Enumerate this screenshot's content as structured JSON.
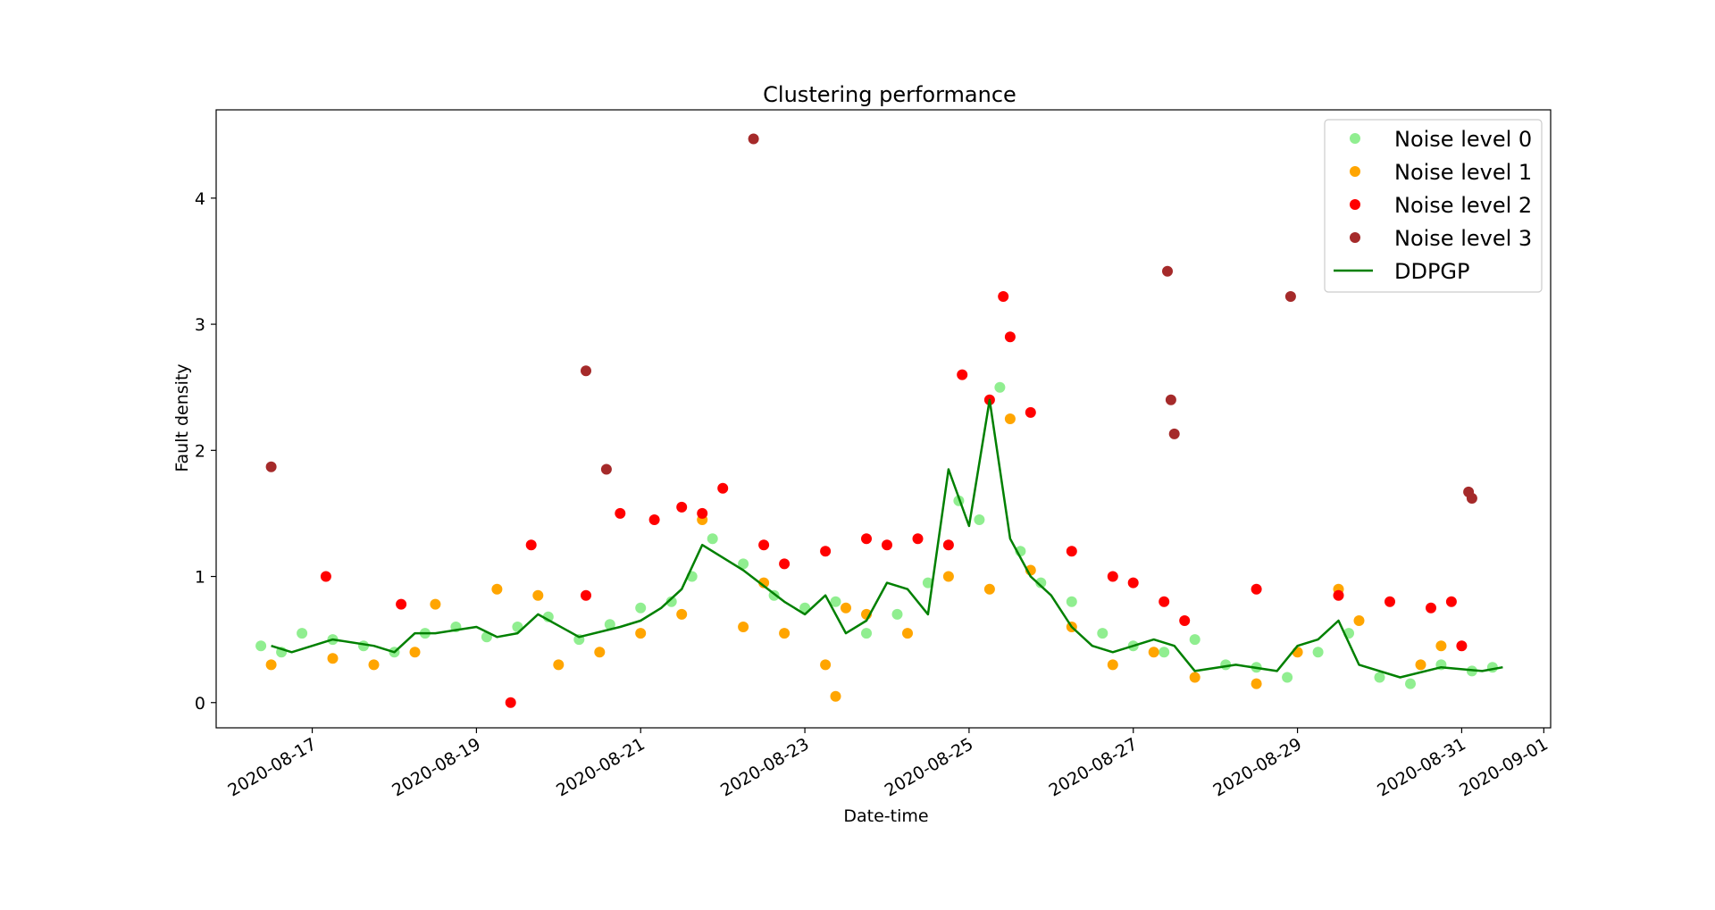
{
  "chart_data": {
    "type": "scatter",
    "title": "Clustering performance",
    "xlabel": "Date-time",
    "ylabel": "Fault density",
    "x_ticks": [
      "2020-08-17",
      "2020-08-19",
      "2020-08-21",
      "2020-08-23",
      "2020-08-25",
      "2020-08-27",
      "2020-08-29",
      "2020-08-31",
      "2020-09-01"
    ],
    "y_ticks": [
      "0",
      "1",
      "2",
      "3",
      "4"
    ],
    "xlim": [
      "2020-08-15T19:55",
      "2020-09-01T02:00"
    ],
    "ylim": [
      -0.2,
      4.7
    ],
    "grid": false,
    "legend_position": "top-right",
    "colors": {
      "noise0": "#90ee90",
      "noise1": "#ffa500",
      "noise2": "#ff0000",
      "noise3": "#a52a2a",
      "ddpgp": "#008000"
    },
    "legend": [
      {
        "label": "Noise level 0",
        "kind": "marker",
        "color": "#90ee90"
      },
      {
        "label": "Noise level 1",
        "kind": "marker",
        "color": "#ffa500"
      },
      {
        "label": "Noise level 2",
        "kind": "marker",
        "color": "#ff0000"
      },
      {
        "label": "Noise level 3",
        "kind": "marker",
        "color": "#a52a2a"
      },
      {
        "label": "DDPGP",
        "kind": "line",
        "color": "#008000"
      }
    ],
    "ddpgp": {
      "x": [
        "2020-08-16T12:00",
        "2020-08-16T18:00",
        "2020-08-17T06:00",
        "2020-08-17T18:00",
        "2020-08-18T00:00",
        "2020-08-18T06:00",
        "2020-08-18T12:00",
        "2020-08-19T00:00",
        "2020-08-19T06:00",
        "2020-08-19T12:00",
        "2020-08-19T18:00",
        "2020-08-20T06:00",
        "2020-08-20T18:00",
        "2020-08-21T00:00",
        "2020-08-21T06:00",
        "2020-08-21T12:00",
        "2020-08-21T18:00",
        "2020-08-22T06:00",
        "2020-08-22T18:00",
        "2020-08-23T00:00",
        "2020-08-23T06:00",
        "2020-08-23T12:00",
        "2020-08-23T18:00",
        "2020-08-24T00:00",
        "2020-08-24T06:00",
        "2020-08-24T12:00",
        "2020-08-24T18:00",
        "2020-08-25T00:00",
        "2020-08-25T06:00",
        "2020-08-25T12:00",
        "2020-08-25T18:00",
        "2020-08-26T00:00",
        "2020-08-26T06:00",
        "2020-08-26T12:00",
        "2020-08-26T18:00",
        "2020-08-27T06:00",
        "2020-08-27T12:00",
        "2020-08-27T18:00",
        "2020-08-28T06:00",
        "2020-08-28T18:00",
        "2020-08-29T00:00",
        "2020-08-29T06:00",
        "2020-08-29T12:00",
        "2020-08-29T18:00",
        "2020-08-30T06:00",
        "2020-08-30T18:00",
        "2020-08-31T06:00",
        "2020-08-31T12:00"
      ],
      "y": [
        0.45,
        0.4,
        0.5,
        0.45,
        0.4,
        0.55,
        0.55,
        0.6,
        0.52,
        0.55,
        0.7,
        0.52,
        0.6,
        0.65,
        0.75,
        0.9,
        1.25,
        1.05,
        0.8,
        0.7,
        0.85,
        0.55,
        0.65,
        0.95,
        0.9,
        0.7,
        1.85,
        1.4,
        2.4,
        1.3,
        1.0,
        0.85,
        0.6,
        0.45,
        0.4,
        0.5,
        0.45,
        0.25,
        0.3,
        0.25,
        0.45,
        0.5,
        0.65,
        0.3,
        0.2,
        0.28,
        0.25,
        0.28
      ]
    },
    "series": [
      {
        "name": "Noise level 0",
        "color": "#90ee90",
        "x": [
          "2020-08-16T09:00",
          "2020-08-16T15:00",
          "2020-08-16T21:00",
          "2020-08-17T06:00",
          "2020-08-17T15:00",
          "2020-08-18T00:00",
          "2020-08-18T09:00",
          "2020-08-18T18:00",
          "2020-08-19T03:00",
          "2020-08-19T12:00",
          "2020-08-19T21:00",
          "2020-08-20T06:00",
          "2020-08-20T15:00",
          "2020-08-21T00:00",
          "2020-08-21T09:00",
          "2020-08-21T15:00",
          "2020-08-21T21:00",
          "2020-08-22T06:00",
          "2020-08-22T15:00",
          "2020-08-23T00:00",
          "2020-08-23T09:00",
          "2020-08-23T18:00",
          "2020-08-24T03:00",
          "2020-08-24T12:00",
          "2020-08-24T21:00",
          "2020-08-25T03:00",
          "2020-08-25T09:00",
          "2020-08-25T15:00",
          "2020-08-25T21:00",
          "2020-08-26T06:00",
          "2020-08-26T15:00",
          "2020-08-27T00:00",
          "2020-08-27T09:00",
          "2020-08-27T18:00",
          "2020-08-28T03:00",
          "2020-08-28T12:00",
          "2020-08-28T21:00",
          "2020-08-29T06:00",
          "2020-08-29T15:00",
          "2020-08-30T00:00",
          "2020-08-30T09:00",
          "2020-08-30T18:00",
          "2020-08-31T03:00",
          "2020-08-31T09:00"
        ],
        "values": [
          0.45,
          0.4,
          0.55,
          0.5,
          0.45,
          0.4,
          0.55,
          0.6,
          0.52,
          0.6,
          0.68,
          0.5,
          0.62,
          0.75,
          0.8,
          1.0,
          1.3,
          1.1,
          0.85,
          0.75,
          0.8,
          0.55,
          0.7,
          0.95,
          1.6,
          1.45,
          2.5,
          1.2,
          0.95,
          0.8,
          0.55,
          0.45,
          0.4,
          0.5,
          0.3,
          0.28,
          0.2,
          0.4,
          0.55,
          0.2,
          0.15,
          0.3,
          0.25,
          0.28
        ]
      },
      {
        "name": "Noise level 1",
        "color": "#ffa500",
        "x": [
          "2020-08-16T12:00",
          "2020-08-17T06:00",
          "2020-08-17T18:00",
          "2020-08-18T06:00",
          "2020-08-18T12:00",
          "2020-08-19T06:00",
          "2020-08-19T18:00",
          "2020-08-20T00:00",
          "2020-08-20T12:00",
          "2020-08-21T00:00",
          "2020-08-21T12:00",
          "2020-08-21T18:00",
          "2020-08-22T06:00",
          "2020-08-22T12:00",
          "2020-08-22T18:00",
          "2020-08-23T06:00",
          "2020-08-23T09:00",
          "2020-08-23T12:00",
          "2020-08-23T18:00",
          "2020-08-24T06:00",
          "2020-08-24T18:00",
          "2020-08-25T06:00",
          "2020-08-25T12:00",
          "2020-08-25T18:00",
          "2020-08-26T06:00",
          "2020-08-26T18:00",
          "2020-08-27T06:00",
          "2020-08-27T18:00",
          "2020-08-28T12:00",
          "2020-08-29T00:00",
          "2020-08-29T12:00",
          "2020-08-29T18:00",
          "2020-08-30T12:00",
          "2020-08-30T18:00"
        ],
        "values": [
          0.3,
          0.35,
          0.3,
          0.4,
          0.78,
          0.9,
          0.85,
          0.3,
          0.4,
          0.55,
          0.7,
          1.45,
          0.6,
          0.95,
          0.55,
          0.3,
          0.05,
          0.75,
          0.7,
          0.55,
          1.0,
          0.9,
          2.25,
          1.05,
          0.6,
          0.3,
          0.4,
          0.2,
          0.15,
          0.4,
          0.9,
          0.65,
          0.3,
          0.45
        ]
      },
      {
        "name": "Noise level 2",
        "color": "#ff0000",
        "x": [
          "2020-08-17T04:00",
          "2020-08-18T02:00",
          "2020-08-19T10:00",
          "2020-08-19T16:00",
          "2020-08-20T08:00",
          "2020-08-20T18:00",
          "2020-08-21T04:00",
          "2020-08-21T12:00",
          "2020-08-21T18:00",
          "2020-08-22T00:00",
          "2020-08-22T12:00",
          "2020-08-22T18:00",
          "2020-08-23T06:00",
          "2020-08-23T18:00",
          "2020-08-24T00:00",
          "2020-08-24T09:00",
          "2020-08-24T18:00",
          "2020-08-24T22:00",
          "2020-08-25T06:00",
          "2020-08-25T10:00",
          "2020-08-25T12:00",
          "2020-08-25T18:00",
          "2020-08-26T06:00",
          "2020-08-26T18:00",
          "2020-08-27T00:00",
          "2020-08-27T09:00",
          "2020-08-27T15:00",
          "2020-08-28T12:00",
          "2020-08-29T12:00",
          "2020-08-30T03:00",
          "2020-08-30T15:00",
          "2020-08-30T21:00",
          "2020-08-31T00:00"
        ],
        "values": [
          1.0,
          0.78,
          0.0,
          1.25,
          0.85,
          1.5,
          1.45,
          1.55,
          1.5,
          1.7,
          1.25,
          1.1,
          1.2,
          1.3,
          1.25,
          1.3,
          1.25,
          2.6,
          2.4,
          3.22,
          2.9,
          2.3,
          1.2,
          1.0,
          0.95,
          0.8,
          0.65,
          0.9,
          0.85,
          0.8,
          0.75,
          0.8,
          0.45
        ]
      },
      {
        "name": "Noise level 3",
        "color": "#a52a2a",
        "x": [
          "2020-08-16T12:00",
          "2020-08-20T08:00",
          "2020-08-20T14:00",
          "2020-08-22T09:00",
          "2020-08-27T10:00",
          "2020-08-27T11:00",
          "2020-08-27T12:00",
          "2020-08-28T22:00",
          "2020-08-31T02:00",
          "2020-08-31T03:00"
        ],
        "values": [
          1.87,
          2.63,
          1.85,
          4.47,
          3.42,
          2.4,
          2.13,
          3.22,
          1.67,
          1.62
        ]
      }
    ]
  }
}
